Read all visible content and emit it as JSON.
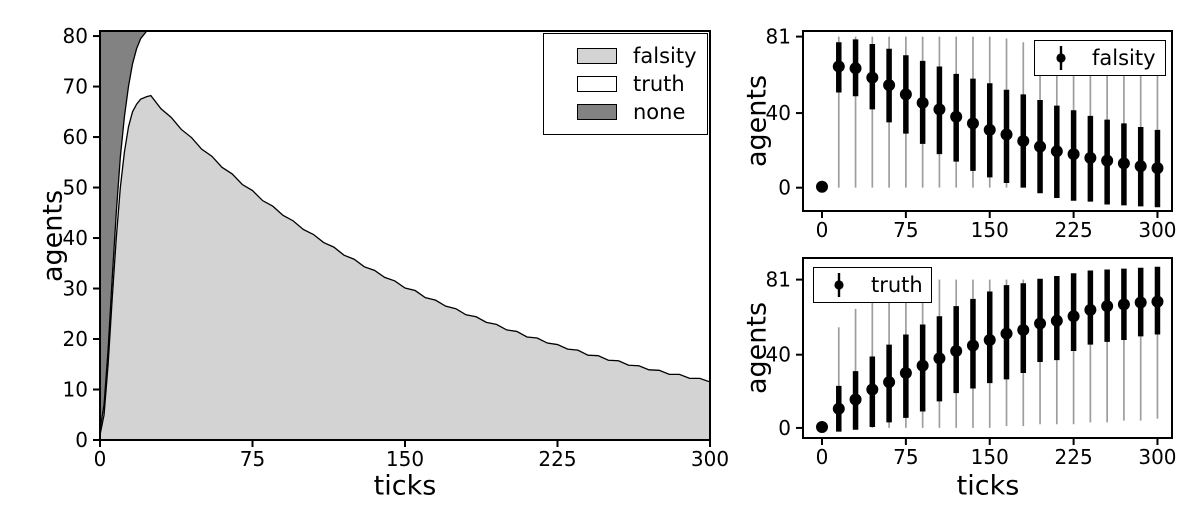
{
  "figure": {
    "background": "#ffffff"
  },
  "colors": {
    "falsity_fill": "#d3d3d3",
    "truth_fill": "#ffffff",
    "none_fill": "#828282",
    "edge_line": "#000000",
    "spine": "#000000",
    "errorbar_thick": "#000000",
    "errorbar_thin": "#9e9e9e",
    "marker": "#000000"
  },
  "chart_data": [
    {
      "id": "stacked-area-left",
      "type": "area",
      "stacked": true,
      "total": 81,
      "xlabel": "ticks",
      "ylabel": "agents",
      "xlim": [
        0,
        300
      ],
      "ylim": [
        0,
        81
      ],
      "xticks": [
        0,
        75,
        150,
        225,
        300
      ],
      "yticks": [
        0,
        10,
        20,
        30,
        40,
        50,
        60,
        70,
        80
      ],
      "grid": false,
      "legend": {
        "position": "upper right",
        "entries": [
          {
            "label": "falsity",
            "fill": "#d3d3d3"
          },
          {
            "label": "truth",
            "fill": "#ffffff"
          },
          {
            "label": "none",
            "fill": "#828282"
          }
        ]
      },
      "x": [
        0,
        2,
        4,
        6,
        8,
        10,
        12,
        14,
        16,
        18,
        20,
        23,
        25,
        30,
        35,
        40,
        45,
        50,
        55,
        60,
        65,
        70,
        75,
        80,
        85,
        90,
        95,
        100,
        105,
        110,
        115,
        120,
        125,
        130,
        135,
        140,
        145,
        150,
        155,
        160,
        165,
        170,
        175,
        180,
        185,
        190,
        195,
        200,
        205,
        210,
        215,
        220,
        225,
        230,
        235,
        240,
        245,
        250,
        255,
        260,
        265,
        270,
        275,
        280,
        285,
        290,
        295,
        300
      ],
      "series": [
        {
          "name": "falsity",
          "values": [
            1,
            5,
            15,
            28,
            40,
            50,
            57,
            62,
            65,
            66.5,
            67.5,
            68,
            68.2,
            65.6,
            63.9,
            61.5,
            59.9,
            57.6,
            56.2,
            54,
            52.7,
            50.6,
            49.4,
            47.4,
            46.3,
            44.5,
            43.4,
            41.7,
            40.7,
            39.1,
            38.2,
            36.6,
            35.8,
            34.3,
            33.6,
            32.2,
            31.5,
            30.1,
            29.6,
            28.2,
            27.7,
            26.5,
            26,
            24.8,
            24.4,
            23.3,
            22.9,
            21.8,
            21.5,
            20.4,
            20.2,
            19.2,
            18.9,
            18,
            17.8,
            16.8,
            16.7,
            15.8,
            15.7,
            14.8,
            14.7,
            13.9,
            13.8,
            13,
            13,
            12.2,
            12.2,
            11.5
          ]
        },
        {
          "name": "truth",
          "values": [
            1,
            2,
            3,
            4,
            5,
            6,
            7,
            8,
            9.5,
            11,
            12,
            13,
            12.8,
            15.4,
            17.1,
            19.5,
            21.1,
            23.4,
            24.8,
            27,
            28.3,
            30.4,
            31.6,
            33.6,
            34.7,
            36.5,
            37.6,
            39.3,
            40.3,
            41.9,
            42.8,
            44.4,
            45.2,
            46.7,
            47.4,
            48.8,
            49.5,
            50.9,
            51.4,
            52.8,
            53.3,
            54.5,
            55,
            56.2,
            56.6,
            57.7,
            58.1,
            59.2,
            59.5,
            60.6,
            60.8,
            61.8,
            62.1,
            63,
            63.2,
            64.2,
            64.3,
            65.2,
            65.3,
            66.2,
            66.3,
            67.1,
            67.2,
            68,
            68,
            68.8,
            68.8,
            69.5
          ]
        },
        {
          "name": "none",
          "values": [
            79,
            74,
            63,
            49,
            36,
            25,
            17,
            11,
            6.5,
            3.5,
            1.5,
            0,
            0,
            0,
            0,
            0,
            0,
            0,
            0,
            0,
            0,
            0,
            0,
            0,
            0,
            0,
            0,
            0,
            0,
            0,
            0,
            0,
            0,
            0,
            0,
            0,
            0,
            0,
            0,
            0,
            0,
            0,
            0,
            0,
            0,
            0,
            0,
            0,
            0,
            0,
            0,
            0,
            0,
            0,
            0,
            0,
            0,
            0,
            0,
            0,
            0,
            0,
            0,
            0,
            0,
            0,
            0,
            0
          ]
        }
      ]
    },
    {
      "id": "errorbar-falsity",
      "type": "scatter",
      "subtype": "errorbar",
      "xlabel": "",
      "ylabel": "agents",
      "xlim": [
        -17,
        313
      ],
      "ylim": [
        -12.5,
        84
      ],
      "xticks": [
        0,
        75,
        150,
        225,
        300
      ],
      "yticks": [
        0,
        40,
        81
      ],
      "grid": false,
      "legend": {
        "position": "upper right",
        "entries": [
          {
            "label": "falsity",
            "marker": "errorbar-dot"
          }
        ]
      },
      "points": [
        {
          "x": 0,
          "median": 0.5,
          "q1": 0.5,
          "q3": 0.5,
          "min": 0.5,
          "max": 0.5
        },
        {
          "x": 15,
          "median": 65,
          "q1": 51,
          "q3": 78,
          "min": 0,
          "max": 81
        },
        {
          "x": 30,
          "median": 64,
          "q1": 49,
          "q3": 79.5,
          "min": 0,
          "max": 81
        },
        {
          "x": 45,
          "median": 59,
          "q1": 42,
          "q3": 77,
          "min": 0,
          "max": 81
        },
        {
          "x": 60,
          "median": 55,
          "q1": 35,
          "q3": 74.5,
          "min": 0,
          "max": 81
        },
        {
          "x": 75,
          "median": 50,
          "q1": 29,
          "q3": 71,
          "min": 0,
          "max": 81
        },
        {
          "x": 90,
          "median": 45.5,
          "q1": 23.5,
          "q3": 68,
          "min": 0,
          "max": 81
        },
        {
          "x": 105,
          "median": 42,
          "q1": 18,
          "q3": 65,
          "min": 0,
          "max": 81
        },
        {
          "x": 120,
          "median": 38,
          "q1": 14,
          "q3": 61,
          "min": 0,
          "max": 81
        },
        {
          "x": 135,
          "median": 34.5,
          "q1": 9,
          "q3": 58.5,
          "min": 0,
          "max": 81
        },
        {
          "x": 150,
          "median": 31,
          "q1": 5.5,
          "q3": 56,
          "min": 0,
          "max": 81
        },
        {
          "x": 165,
          "median": 28.5,
          "q1": 2.5,
          "q3": 52.5,
          "min": 0,
          "max": 80
        },
        {
          "x": 180,
          "median": 25,
          "q1": 0,
          "q3": 50,
          "min": 0,
          "max": 78
        },
        {
          "x": 195,
          "median": 22,
          "q1": -3,
          "q3": 47,
          "min": 0,
          "max": 76
        },
        {
          "x": 210,
          "median": 19.5,
          "q1": -5.5,
          "q3": 44,
          "min": 0,
          "max": 74
        },
        {
          "x": 225,
          "median": 18,
          "q1": -7,
          "q3": 41.5,
          "min": 0,
          "max": 72
        },
        {
          "x": 240,
          "median": 16,
          "q1": -7.5,
          "q3": 38.5,
          "min": 0,
          "max": 69
        },
        {
          "x": 255,
          "median": 14.5,
          "q1": -9,
          "q3": 36.5,
          "min": 0,
          "max": 67
        },
        {
          "x": 270,
          "median": 13,
          "q1": -9.5,
          "q3": 34.5,
          "min": 0,
          "max": 65
        },
        {
          "x": 285,
          "median": 11.5,
          "q1": -10,
          "q3": 32.5,
          "min": 0,
          "max": 62
        },
        {
          "x": 300,
          "median": 10.5,
          "q1": -10.5,
          "q3": 31,
          "min": 0,
          "max": 60
        }
      ]
    },
    {
      "id": "errorbar-truth",
      "type": "scatter",
      "subtype": "errorbar",
      "xlabel": "ticks",
      "ylabel": "agents",
      "xlim": [
        -17,
        313
      ],
      "ylim": [
        -5.5,
        92.8
      ],
      "xticks": [
        0,
        75,
        150,
        225,
        300
      ],
      "yticks": [
        0,
        40,
        81
      ],
      "grid": false,
      "legend": {
        "position": "upper left",
        "entries": [
          {
            "label": "truth",
            "marker": "errorbar-dot"
          }
        ]
      },
      "points": [
        {
          "x": 0,
          "median": 0.5,
          "q1": 0.5,
          "q3": 0.5,
          "min": 0.5,
          "max": 0.5
        },
        {
          "x": 15,
          "median": 10.5,
          "q1": -2,
          "q3": 23,
          "min": 0,
          "max": 55
        },
        {
          "x": 30,
          "median": 15.5,
          "q1": -1,
          "q3": 31,
          "min": 0,
          "max": 65
        },
        {
          "x": 45,
          "median": 21,
          "q1": 0.5,
          "q3": 39,
          "min": 0,
          "max": 75
        },
        {
          "x": 60,
          "median": 25,
          "q1": 3,
          "q3": 45.5,
          "min": 0,
          "max": 79
        },
        {
          "x": 75,
          "median": 30,
          "q1": 5.5,
          "q3": 51,
          "min": 0,
          "max": 81
        },
        {
          "x": 90,
          "median": 34,
          "q1": 9,
          "q3": 56.5,
          "min": 0,
          "max": 81
        },
        {
          "x": 105,
          "median": 38,
          "q1": 14.5,
          "q3": 61,
          "min": 0,
          "max": 81
        },
        {
          "x": 120,
          "median": 42,
          "q1": 19,
          "q3": 66.5,
          "min": 0,
          "max": 81
        },
        {
          "x": 135,
          "median": 45,
          "q1": 21.5,
          "q3": 70.5,
          "min": 0,
          "max": 81
        },
        {
          "x": 150,
          "median": 48,
          "q1": 24.5,
          "q3": 74.5,
          "min": 0,
          "max": 81
        },
        {
          "x": 165,
          "median": 51.5,
          "q1": 26.5,
          "q3": 78,
          "min": 1,
          "max": 81
        },
        {
          "x": 180,
          "median": 53.5,
          "q1": 30,
          "q3": 79,
          "min": 1,
          "max": 81
        },
        {
          "x": 195,
          "median": 57,
          "q1": 36,
          "q3": 81.5,
          "min": 2,
          "max": 81
        },
        {
          "x": 210,
          "median": 58.5,
          "q1": 37,
          "q3": 83,
          "min": 2,
          "max": 81
        },
        {
          "x": 225,
          "median": 61,
          "q1": 42,
          "q3": 84.5,
          "min": 2,
          "max": 81
        },
        {
          "x": 240,
          "median": 64.5,
          "q1": 45.5,
          "q3": 86,
          "min": 3,
          "max": 81
        },
        {
          "x": 255,
          "median": 66.5,
          "q1": 47,
          "q3": 86.5,
          "min": 3,
          "max": 81
        },
        {
          "x": 270,
          "median": 67.5,
          "q1": 48,
          "q3": 87,
          "min": 4,
          "max": 81
        },
        {
          "x": 285,
          "median": 68.5,
          "q1": 50,
          "q3": 87.5,
          "min": 4,
          "max": 81
        },
        {
          "x": 300,
          "median": 69,
          "q1": 51,
          "q3": 88,
          "min": 5,
          "max": 81
        }
      ]
    }
  ]
}
